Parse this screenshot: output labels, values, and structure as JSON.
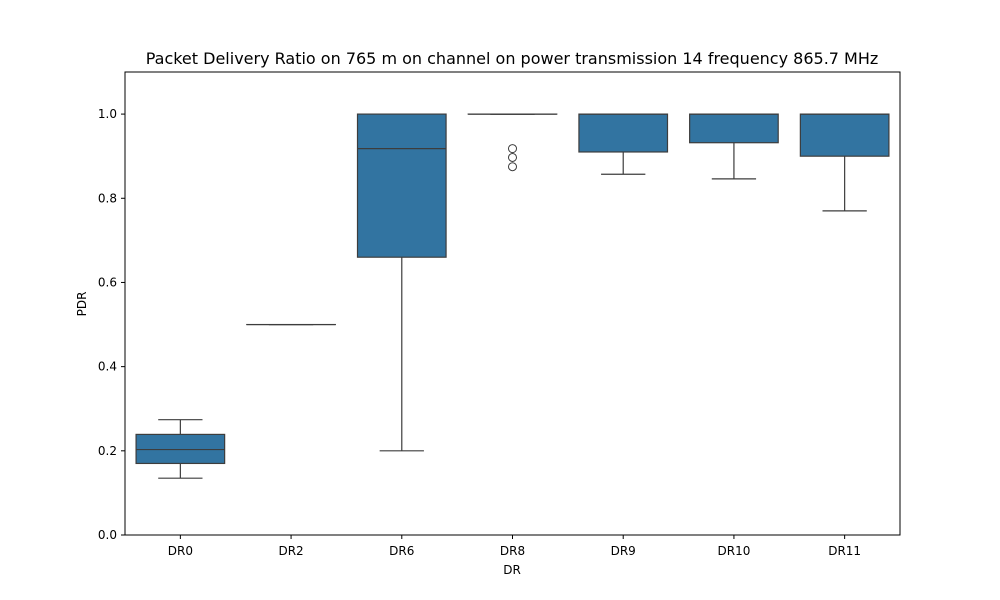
{
  "chart_data": {
    "type": "box",
    "title": "Packet Delivery Ratio on 765 m on channel on power transmission 14 frequency 865.7 MHz",
    "xlabel": "DR",
    "ylabel": "PDR",
    "ylim": [
      0.0,
      1.1
    ],
    "yticks": [
      "0.0",
      "0.2",
      "0.4",
      "0.6",
      "0.8",
      "1.0"
    ],
    "grid": false,
    "colors": {
      "box_fill": "#3274a1",
      "box_edge": "#3d3d3d"
    },
    "categories": [
      "DR0",
      "DR2",
      "DR6",
      "DR8",
      "DR9",
      "DR10",
      "DR11"
    ],
    "boxes": [
      {
        "category": "DR0",
        "whisker_low": 0.135,
        "q1": 0.17,
        "median": 0.203,
        "q3": 0.239,
        "whisker_high": 0.274,
        "outliers": []
      },
      {
        "category": "DR2",
        "whisker_low": 0.5,
        "q1": 0.5,
        "median": 0.5,
        "q3": 0.5,
        "whisker_high": 0.5,
        "outliers": []
      },
      {
        "category": "DR6",
        "whisker_low": 0.2,
        "q1": 0.66,
        "median": 0.918,
        "q3": 1.0,
        "whisker_high": 1.0,
        "outliers": []
      },
      {
        "category": "DR8",
        "whisker_low": 1.0,
        "q1": 1.0,
        "median": 1.0,
        "q3": 1.0,
        "whisker_high": 1.0,
        "outliers": [
          0.918,
          0.897,
          0.875
        ]
      },
      {
        "category": "DR9",
        "whisker_low": 0.857,
        "q1": 0.91,
        "median": 1.0,
        "q3": 1.0,
        "whisker_high": 1.0,
        "outliers": []
      },
      {
        "category": "DR10",
        "whisker_low": 0.846,
        "q1": 0.932,
        "median": 1.0,
        "q3": 1.0,
        "whisker_high": 1.0,
        "outliers": []
      },
      {
        "category": "DR11",
        "whisker_low": 0.77,
        "q1": 0.9,
        "median": 1.0,
        "q3": 1.0,
        "whisker_high": 1.0,
        "outliers": []
      }
    ]
  }
}
